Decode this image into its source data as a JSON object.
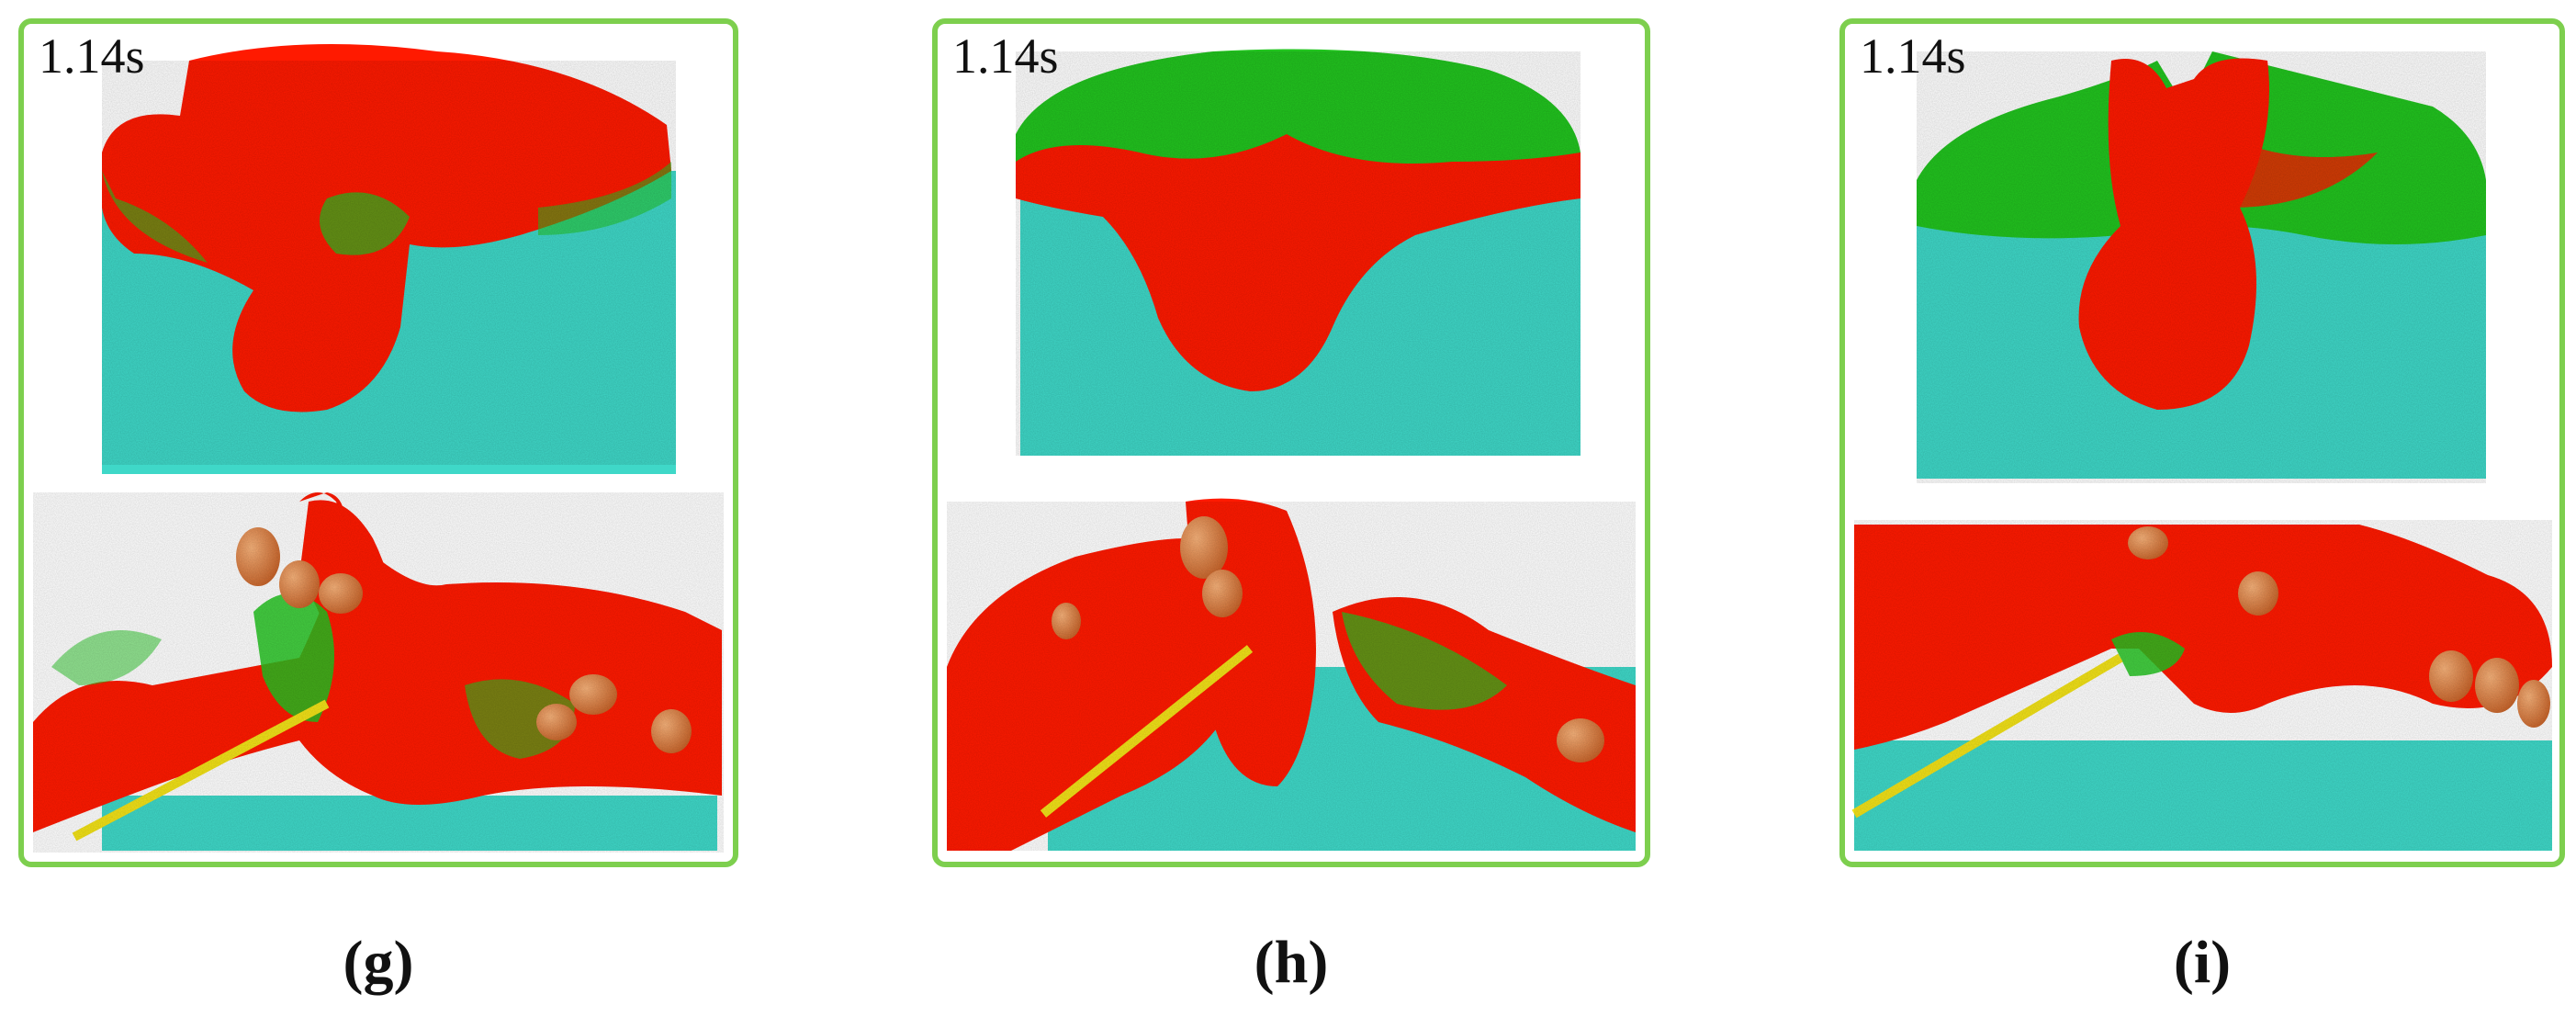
{
  "panels": [
    {
      "time": "1.14s",
      "caption": "(g)"
    },
    {
      "time": "1.14s",
      "caption": "(h)"
    },
    {
      "time": "1.14s",
      "caption": "(i)"
    }
  ],
  "colors": {
    "frame": "#7dcf4e",
    "bed": "#3fd8c8",
    "red_particles": "#ff1a00",
    "green_particles": "#22c41f",
    "blade": "#f2e218",
    "stones": "#e58a3a"
  }
}
